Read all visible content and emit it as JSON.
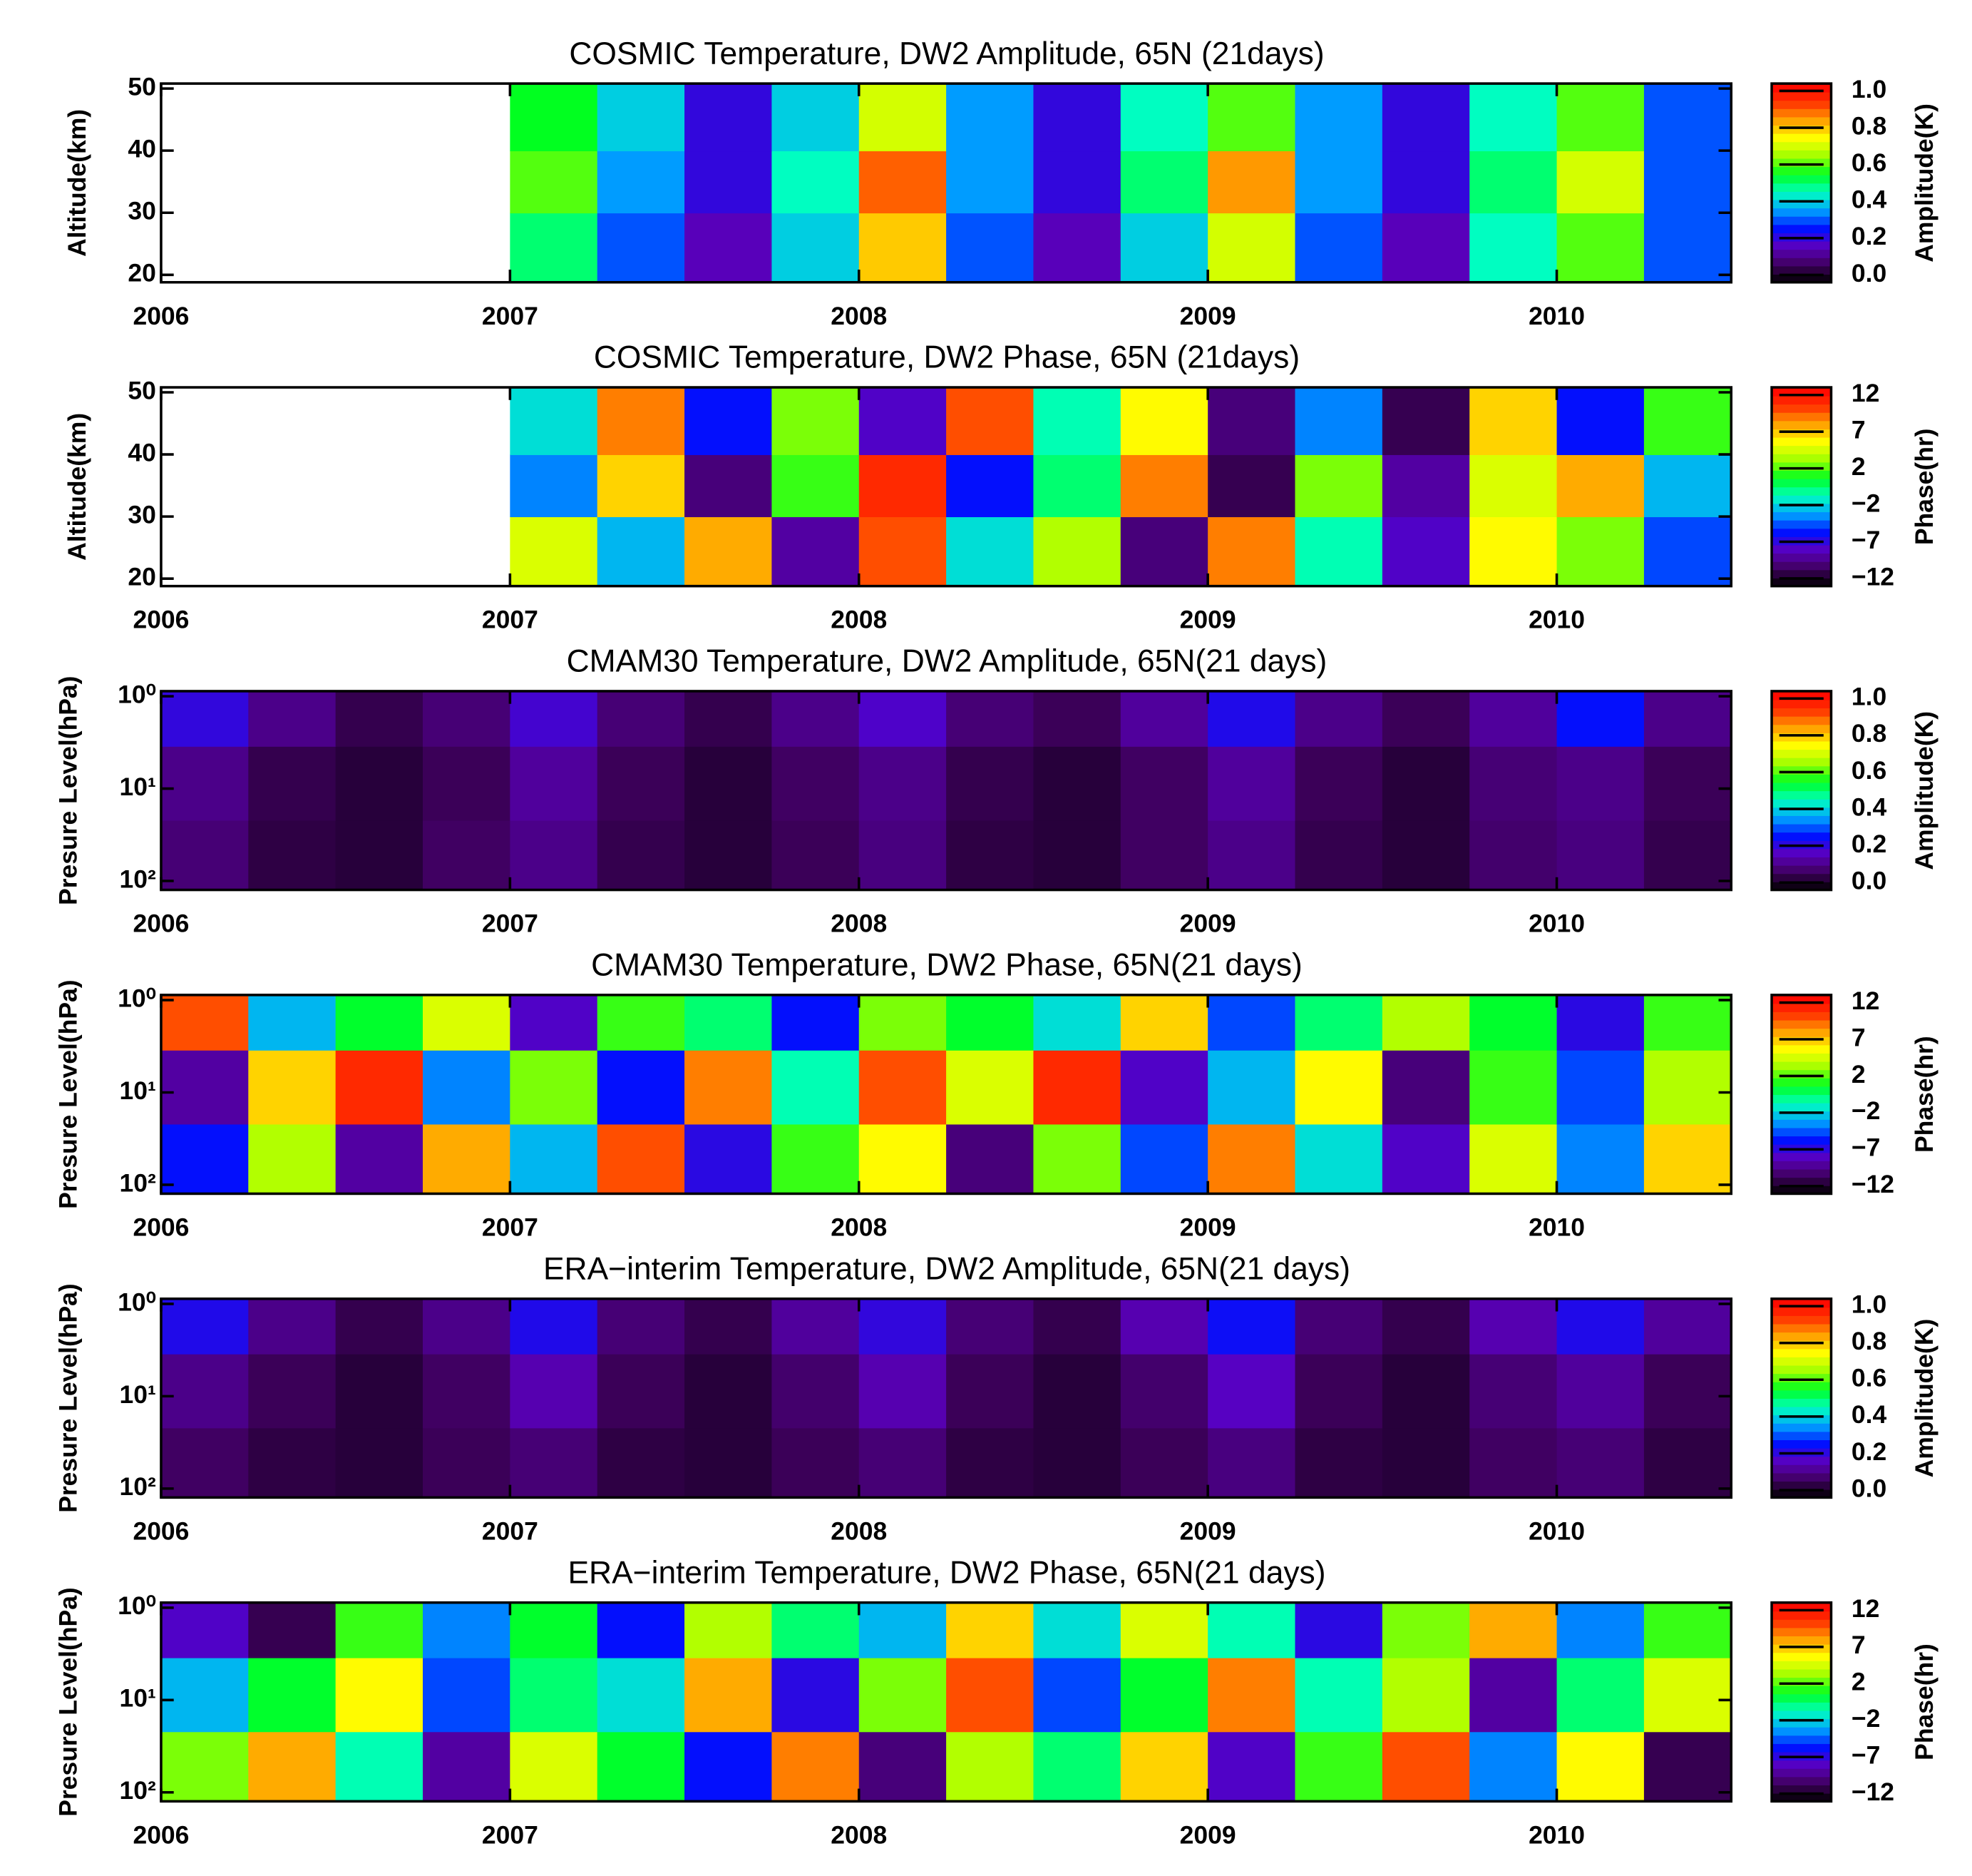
{
  "chart_data": [
    {
      "type": "heatmap",
      "title": "COSMIC Temperature, DW2 Amplitude, 65N (21days)",
      "ylabel": "Altitude(km)",
      "cbar_label": "Amplitude(K)",
      "x": [
        2006.125,
        2006.375,
        2006.625,
        2006.875,
        2007.125,
        2007.375,
        2007.625,
        2007.875,
        2008.125,
        2008.375,
        2008.625,
        2008.875,
        2009.125,
        2009.375,
        2009.625,
        2009.875,
        2010.125,
        2010.375
      ],
      "y": [
        25,
        35,
        45
      ],
      "z": [
        [
          null,
          null,
          null,
          null,
          0.5,
          0.3,
          0.15,
          0.4,
          0.8,
          0.3,
          0.15,
          0.4,
          0.7,
          0.3,
          0.15,
          0.45,
          0.6,
          0.3
        ],
        [
          null,
          null,
          null,
          null,
          0.6,
          0.35,
          0.2,
          0.45,
          0.9,
          0.35,
          0.2,
          0.5,
          0.85,
          0.35,
          0.2,
          0.5,
          0.7,
          0.3
        ],
        [
          null,
          null,
          null,
          null,
          0.55,
          0.4,
          0.2,
          0.4,
          0.7,
          0.35,
          0.2,
          0.45,
          0.6,
          0.35,
          0.2,
          0.45,
          0.6,
          0.3
        ]
      ],
      "xlim": [
        2006,
        2010.5
      ],
      "xticks": [
        2006,
        2007,
        2008,
        2009,
        2010
      ],
      "ylim": [
        18.8,
        50.8
      ],
      "yticks": [
        20,
        30,
        40,
        50
      ],
      "ylog": false,
      "yreverse": false,
      "clim": [
        -0.04,
        1.04
      ],
      "cticks": [
        {
          "value": 0,
          "label": "0.0"
        },
        {
          "value": 0.2,
          "label": "0.2"
        },
        {
          "value": 0.4,
          "label": "0.4"
        },
        {
          "value": 0.6,
          "label": "0.6"
        },
        {
          "value": 0.8,
          "label": "0.8"
        },
        {
          "value": 1,
          "label": "1.0"
        }
      ],
      "colormap": [
        "#000000",
        "#400060",
        "#5a00c0",
        "#0010ff",
        "#00a0ff",
        "#00ffc0",
        "#00ff20",
        "#a0ff00",
        "#ffff00",
        "#ffa000",
        "#ff3000",
        "#ff0000"
      ]
    },
    {
      "type": "heatmap",
      "title": "COSMIC Temperature, DW2 Phase, 65N (21days)",
      "ylabel": "Altitude(km)",
      "cbar_label": "Phase(hr)",
      "x": [
        2006.125,
        2006.375,
        2006.625,
        2006.875,
        2007.125,
        2007.375,
        2007.625,
        2007.875,
        2008.125,
        2008.375,
        2008.625,
        2008.875,
        2009.125,
        2009.375,
        2009.625,
        2009.875,
        2010.125,
        2010.375
      ],
      "y": [
        25,
        35,
        45
      ],
      "z": [
        [
          null,
          null,
          null,
          null,
          5,
          -3,
          8,
          -9,
          10,
          -2,
          4,
          -10,
          9,
          -1,
          -8,
          6,
          3,
          -5
        ],
        [
          null,
          null,
          null,
          null,
          -4,
          7,
          -10,
          2,
          11,
          -6,
          0,
          9,
          -11,
          3,
          -9,
          5,
          8,
          -3
        ],
        [
          null,
          null,
          null,
          null,
          -2,
          9,
          -6,
          3,
          -8,
          10,
          -1,
          6,
          -10,
          -4,
          -11,
          7,
          -6,
          2
        ]
      ],
      "xlim": [
        2006,
        2010.5
      ],
      "xticks": [
        2006,
        2007,
        2008,
        2009,
        2010
      ],
      "ylim": [
        18.8,
        50.8
      ],
      "yticks": [
        20,
        30,
        40,
        50
      ],
      "ylog": false,
      "yreverse": false,
      "clim": [
        -13,
        13
      ],
      "cticks": [
        {
          "value": -12,
          "label": "−12"
        },
        {
          "value": -7.2,
          "label": "−7"
        },
        {
          "value": -2.4,
          "label": "−2"
        },
        {
          "value": 2.4,
          "label": "2"
        },
        {
          "value": 7.2,
          "label": "7"
        },
        {
          "value": 12,
          "label": "12"
        }
      ],
      "colormap": [
        "#000000",
        "#400060",
        "#5a00c0",
        "#0010ff",
        "#00a0ff",
        "#00ffc0",
        "#00ff20",
        "#a0ff00",
        "#ffff00",
        "#ffa000",
        "#ff3000",
        "#ff0000"
      ]
    },
    {
      "type": "heatmap",
      "title": "CMAM30 Temperature, DW2 Amplitude,  65N(21 days)",
      "ylabel": "Presure Level(hPa)",
      "cbar_label": "Amplitude(K)",
      "x": [
        2006.125,
        2006.375,
        2006.625,
        2006.875,
        2007.125,
        2007.375,
        2007.625,
        2007.875,
        2008.125,
        2008.375,
        2008.625,
        2008.875,
        2009.125,
        2009.375,
        2009.625,
        2009.875,
        2010.125,
        2010.375
      ],
      "y": [
        60,
        8,
        1.5
      ],
      "z": [
        [
          0.08,
          0.03,
          0.02,
          0.06,
          0.1,
          0.04,
          0.02,
          0.05,
          0.09,
          0.03,
          0.02,
          0.06,
          0.1,
          0.04,
          0.02,
          0.07,
          0.09,
          0.04
        ],
        [
          0.1,
          0.04,
          0.02,
          0.05,
          0.12,
          0.05,
          0.02,
          0.06,
          0.1,
          0.04,
          0.02,
          0.06,
          0.12,
          0.05,
          0.02,
          0.08,
          0.1,
          0.05
        ],
        [
          0.2,
          0.1,
          0.04,
          0.08,
          0.18,
          0.08,
          0.04,
          0.1,
          0.17,
          0.08,
          0.05,
          0.12,
          0.22,
          0.1,
          0.05,
          0.12,
          0.25,
          0.1
        ]
      ],
      "xlim": [
        2006,
        2010.5
      ],
      "xticks": [
        2006,
        2007,
        2008,
        2009,
        2010
      ],
      "ylim": [
        0.88,
        125
      ],
      "yticks": [
        {
          "value": 1,
          "label": "10⁰"
        },
        {
          "value": 10,
          "label": "10¹"
        },
        {
          "value": 100,
          "label": "10²"
        }
      ],
      "ylog": true,
      "yreverse": true,
      "clim": [
        -0.04,
        1.04
      ],
      "cticks": [
        {
          "value": 0,
          "label": "0.0"
        },
        {
          "value": 0.2,
          "label": "0.2"
        },
        {
          "value": 0.4,
          "label": "0.4"
        },
        {
          "value": 0.6,
          "label": "0.6"
        },
        {
          "value": 0.8,
          "label": "0.8"
        },
        {
          "value": 1,
          "label": "1.0"
        }
      ],
      "colormap": [
        "#000000",
        "#400060",
        "#5a00c0",
        "#0010ff",
        "#00a0ff",
        "#00ffc0",
        "#00ff20",
        "#a0ff00",
        "#ffff00",
        "#ffa000",
        "#ff3000",
        "#ff0000"
      ]
    },
    {
      "type": "heatmap",
      "title": "CMAM30 Temperature, DW2 Phase,  65N(21 days)",
      "ylabel": "Presure Level(hPa)",
      "cbar_label": "Phase(hr)",
      "x": [
        2006.125,
        2006.375,
        2006.625,
        2006.875,
        2007.125,
        2007.375,
        2007.625,
        2007.875,
        2008.125,
        2008.375,
        2008.625,
        2008.875,
        2009.125,
        2009.375,
        2009.625,
        2009.875,
        2010.125,
        2010.375
      ],
      "y": [
        60,
        8,
        1.5
      ],
      "z": [
        [
          -6,
          4,
          -9,
          8,
          -3,
          10,
          -7,
          2,
          6,
          -10,
          3,
          -5,
          9,
          -2,
          -8,
          5,
          -4,
          7
        ],
        [
          -9,
          7,
          11,
          -4,
          3,
          -6,
          9,
          -1,
          10,
          5,
          11,
          -8,
          -3,
          6,
          -10,
          2,
          -5,
          4
        ],
        [
          10,
          -3,
          1,
          5,
          -8,
          2,
          0,
          -6,
          3,
          1,
          -2,
          7,
          -5,
          0,
          4,
          1,
          -7,
          2
        ]
      ],
      "xlim": [
        2006,
        2010.5
      ],
      "xticks": [
        2006,
        2007,
        2008,
        2009,
        2010
      ],
      "ylim": [
        0.88,
        125
      ],
      "yticks": [
        {
          "value": 1,
          "label": "10⁰"
        },
        {
          "value": 10,
          "label": "10¹"
        },
        {
          "value": 100,
          "label": "10²"
        }
      ],
      "ylog": true,
      "yreverse": true,
      "clim": [
        -13,
        13
      ],
      "cticks": [
        {
          "value": -12,
          "label": "−12"
        },
        {
          "value": -7.2,
          "label": "−7"
        },
        {
          "value": -2.4,
          "label": "−2"
        },
        {
          "value": 2.4,
          "label": "2"
        },
        {
          "value": 7.2,
          "label": "7"
        },
        {
          "value": 12,
          "label": "12"
        }
      ],
      "colormap": [
        "#000000",
        "#400060",
        "#5a00c0",
        "#0010ff",
        "#00a0ff",
        "#00ffc0",
        "#00ff20",
        "#a0ff00",
        "#ffff00",
        "#ffa000",
        "#ff3000",
        "#ff0000"
      ]
    },
    {
      "type": "heatmap",
      "title": "ERA−interim Temperature, DW2 Amplitude,  65N(21 days)",
      "ylabel": "Presure Level(hPa)",
      "cbar_label": "Amplitude(K)",
      "x": [
        2006.125,
        2006.375,
        2006.625,
        2006.875,
        2007.125,
        2007.375,
        2007.625,
        2007.875,
        2008.125,
        2008.375,
        2008.625,
        2008.875,
        2009.125,
        2009.375,
        2009.625,
        2009.875,
        2010.125,
        2010.375
      ],
      "y": [
        60,
        8,
        1.5
      ],
      "z": [
        [
          0.06,
          0.03,
          0.02,
          0.05,
          0.08,
          0.03,
          0.02,
          0.05,
          0.08,
          0.03,
          0.02,
          0.05,
          0.09,
          0.03,
          0.02,
          0.06,
          0.08,
          0.03
        ],
        [
          0.1,
          0.05,
          0.02,
          0.06,
          0.14,
          0.05,
          0.02,
          0.07,
          0.14,
          0.05,
          0.02,
          0.07,
          0.16,
          0.05,
          0.02,
          0.08,
          0.12,
          0.05
        ],
        [
          0.22,
          0.1,
          0.04,
          0.1,
          0.22,
          0.08,
          0.04,
          0.12,
          0.2,
          0.08,
          0.04,
          0.14,
          0.24,
          0.08,
          0.04,
          0.14,
          0.22,
          0.12
        ]
      ],
      "xlim": [
        2006,
        2010.5
      ],
      "xticks": [
        2006,
        2007,
        2008,
        2009,
        2010
      ],
      "ylim": [
        0.88,
        125
      ],
      "yticks": [
        {
          "value": 1,
          "label": "10⁰"
        },
        {
          "value": 10,
          "label": "10¹"
        },
        {
          "value": 100,
          "label": "10²"
        }
      ],
      "ylog": true,
      "yreverse": true,
      "clim": [
        -0.04,
        1.04
      ],
      "cticks": [
        {
          "value": 0,
          "label": "0.0"
        },
        {
          "value": 0.2,
          "label": "0.2"
        },
        {
          "value": 0.4,
          "label": "0.4"
        },
        {
          "value": 0.6,
          "label": "0.6"
        },
        {
          "value": 0.8,
          "label": "0.8"
        },
        {
          "value": 1,
          "label": "1.0"
        }
      ],
      "colormap": [
        "#000000",
        "#400060",
        "#5a00c0",
        "#0010ff",
        "#00a0ff",
        "#00ffc0",
        "#00ff20",
        "#a0ff00",
        "#ffff00",
        "#ffa000",
        "#ff3000",
        "#ff0000"
      ]
    },
    {
      "type": "heatmap",
      "title": "ERA−interim Temperature, DW2 Phase,  65N(21 days)",
      "ylabel": "Presure Level(hPa)",
      "cbar_label": "Phase(hr)",
      "x": [
        2006.125,
        2006.375,
        2006.625,
        2006.875,
        2007.125,
        2007.375,
        2007.625,
        2007.875,
        2008.125,
        2008.375,
        2008.625,
        2008.875,
        2009.125,
        2009.375,
        2009.625,
        2009.875,
        2010.125,
        2010.375
      ],
      "y": [
        60,
        8,
        1.5
      ],
      "z": [
        [
          3,
          8,
          -1,
          -9,
          5,
          1,
          -6,
          9,
          -10,
          4,
          0,
          7,
          -8,
          2,
          10,
          -4,
          6,
          -11
        ],
        [
          -3,
          1,
          6,
          -5,
          0,
          -2,
          8,
          -7,
          3,
          10,
          -5,
          1,
          9,
          -1,
          4,
          -9,
          0,
          5
        ],
        [
          -8,
          -11,
          2,
          -4,
          1,
          -6,
          4,
          0,
          -3,
          7,
          -2,
          5,
          -1,
          -7,
          3,
          8,
          -4,
          2
        ]
      ],
      "xlim": [
        2006,
        2010.5
      ],
      "xticks": [
        2006,
        2007,
        2008,
        2009,
        2010
      ],
      "ylim": [
        0.88,
        125
      ],
      "yticks": [
        {
          "value": 1,
          "label": "10⁰"
        },
        {
          "value": 10,
          "label": "10¹"
        },
        {
          "value": 100,
          "label": "10²"
        }
      ],
      "ylog": true,
      "yreverse": true,
      "clim": [
        -13,
        13
      ],
      "cticks": [
        {
          "value": -12,
          "label": "−12"
        },
        {
          "value": -7.2,
          "label": "−7"
        },
        {
          "value": -2.4,
          "label": "−2"
        },
        {
          "value": 2.4,
          "label": "2"
        },
        {
          "value": 7.2,
          "label": "7"
        },
        {
          "value": 12,
          "label": "12"
        }
      ],
      "colormap": [
        "#000000",
        "#400060",
        "#5a00c0",
        "#0010ff",
        "#00a0ff",
        "#00ffc0",
        "#00ff20",
        "#a0ff00",
        "#ffff00",
        "#ffa000",
        "#ff3000",
        "#ff0000"
      ]
    }
  ]
}
